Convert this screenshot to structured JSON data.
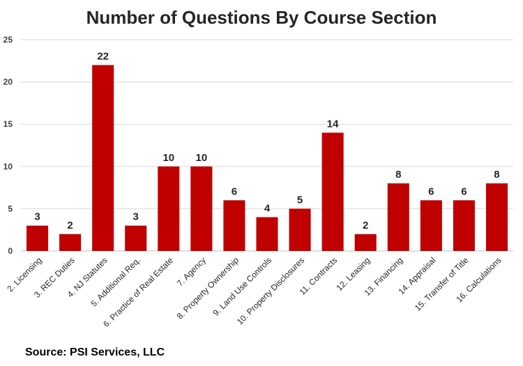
{
  "chart_data": {
    "type": "bar",
    "title": "Number of Questions By Course Section",
    "xlabel": "",
    "ylabel": "",
    "ylim": [
      0,
      25
    ],
    "yticks": [
      0,
      5,
      10,
      15,
      20,
      25
    ],
    "grid": true,
    "legend": "none",
    "categories": [
      "2. Licensing",
      "3. REC Duties",
      "4. NJ Statutes",
      "5. Additional Req.",
      "6. Practice of Real Estate",
      "7. Agency",
      "8. Property Ownership",
      "9. Land Use Controls",
      "10. Property Disclosures",
      "11. Contracts",
      "12. Leasing",
      "13. Financing",
      "14. Appraisal",
      "15. Transfer of Title",
      "16. Calculations"
    ],
    "values": [
      3,
      2,
      22,
      3,
      10,
      10,
      6,
      4,
      5,
      14,
      2,
      8,
      6,
      6,
      8
    ],
    "bar_color": "#c00000"
  },
  "source": "Source: PSI Services, LLC"
}
